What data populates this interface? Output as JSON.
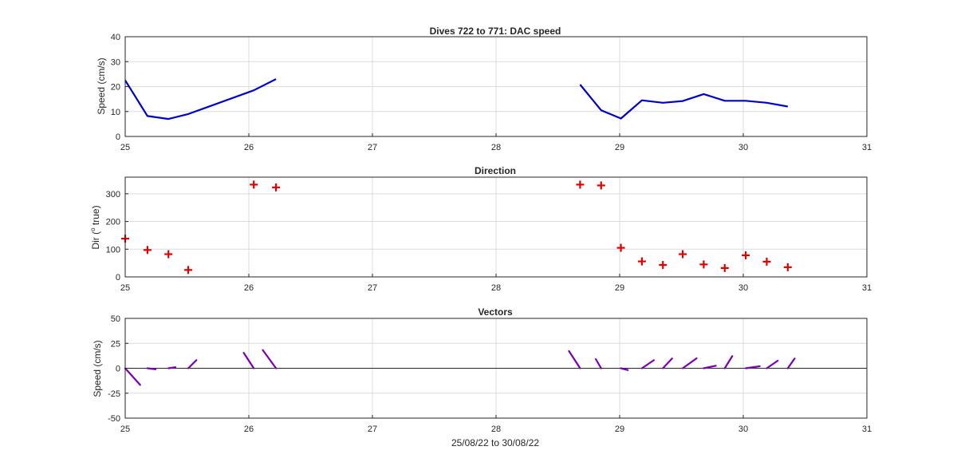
{
  "chart_data": [
    {
      "type": "line",
      "title": "Dives 722 to 771: DAC speed",
      "xlabel": "",
      "ylabel": "Speed (cm/s)",
      "xlim": [
        25,
        31
      ],
      "ylim": [
        0,
        40
      ],
      "xticks": [
        "25",
        "26",
        "27",
        "28",
        "29",
        "30",
        "31"
      ],
      "yticks": [
        "0",
        "10",
        "20",
        "30",
        "40"
      ],
      "grid": true,
      "color": "#0000cd",
      "segments": [
        {
          "x": [
            25.0,
            25.18,
            25.35,
            25.51,
            26.04,
            26.22
          ],
          "y": [
            22.5,
            8.2,
            7.0,
            9.0,
            18.5,
            23.0
          ]
        },
        {
          "x": [
            28.68,
            28.85,
            29.01,
            29.18,
            29.35,
            29.51,
            29.68,
            29.85,
            30.02,
            30.19,
            30.36
          ],
          "y": [
            20.8,
            10.5,
            7.2,
            14.5,
            13.5,
            14.2,
            17.0,
            14.3,
            14.3,
            13.5,
            12.0
          ]
        }
      ]
    },
    {
      "type": "scatter",
      "title": "Direction",
      "xlabel": "",
      "ylabel_main": "Dir (",
      "ylabel_sup": "o",
      "ylabel_tail": " true)",
      "xlim": [
        25,
        31
      ],
      "ylim": [
        0,
        360
      ],
      "xticks": [
        "25",
        "26",
        "27",
        "28",
        "29",
        "30",
        "31"
      ],
      "yticks": [
        "0",
        "100",
        "200",
        "300"
      ],
      "ytick_values": [
        0,
        100,
        200,
        300
      ],
      "grid": true,
      "marker": "+",
      "color": "#e00000",
      "x": [
        25.0,
        25.18,
        25.35,
        25.51,
        26.04,
        26.22,
        28.68,
        28.85,
        29.01,
        29.18,
        29.35,
        29.51,
        29.68,
        29.85,
        30.02,
        30.19,
        30.36
      ],
      "y": [
        138,
        97,
        82,
        25,
        333,
        323,
        333,
        330,
        105,
        56,
        43,
        82,
        45,
        32,
        78,
        55,
        35
      ]
    },
    {
      "type": "vector",
      "title": "Vectors",
      "xlabel": "25/08/22 to 30/08/22",
      "ylabel": "Speed (cm/s)",
      "xlim": [
        25,
        31
      ],
      "ylim": [
        -50,
        50
      ],
      "xticks": [
        "25",
        "26",
        "27",
        "28",
        "29",
        "30",
        "31"
      ],
      "yticks": [
        "-50",
        "-25",
        "0",
        "25",
        "50"
      ],
      "ytick_values": [
        -50,
        -25,
        0,
        25,
        50
      ],
      "grid": true,
      "color": "#7a00b4",
      "x": [
        25.0,
        25.18,
        25.35,
        25.51,
        26.04,
        26.22,
        28.68,
        28.85,
        29.01,
        29.18,
        29.35,
        29.51,
        29.68,
        29.85,
        30.02,
        30.19,
        30.36
      ],
      "u": [
        15.0,
        8.2,
        7.0,
        8.2,
        -10.1,
        -13.3,
        -11.2,
        -5.3,
        7.0,
        12.0,
        9.2,
        14.0,
        12.1,
        7.6,
        14.0,
        11.1,
        6.9
      ],
      "v": [
        -16.7,
        -1.0,
        1.0,
        8.2,
        15.5,
        18.3,
        17.3,
        9.1,
        -1.8,
        8.1,
        9.8,
        10.0,
        2.5,
        12.2,
        2.0,
        7.6,
        9.8
      ]
    }
  ]
}
